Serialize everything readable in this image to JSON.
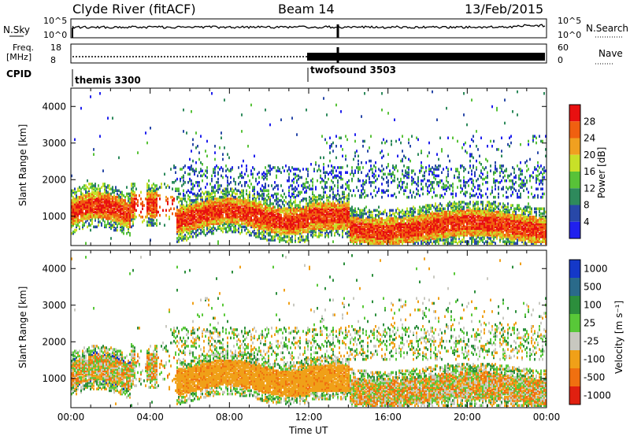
{
  "header": {
    "station": "Clyde River (fitACF)",
    "beam": "Beam 14",
    "date": "13/Feb/2015"
  },
  "top_panels": {
    "nsky_label": "N.Sky",
    "nsky_ticks": [
      "10^5",
      "10^0"
    ],
    "nsearch_label": "N.Search",
    "nsearch_ticks": [
      "10^5",
      "10^0"
    ],
    "freq_label_1": "Freq.",
    "freq_label_2": "[MHz]",
    "freq_ticks": [
      "18",
      "8"
    ],
    "nave_label": "Nave",
    "nave_ticks": [
      "60",
      "0"
    ],
    "cpid_label": "CPID",
    "cpid_segments": [
      {
        "name": "themis 3300",
        "start_hour": 0
      },
      {
        "name": "twofsound 3503",
        "start_hour": 12
      }
    ]
  },
  "chart_data": [
    {
      "type": "heatmap",
      "panel": "power",
      "ylabel": "Slant Range [km]",
      "xlabel": "",
      "x_ticks": [],
      "y_ticks": [
        "1000",
        "2000",
        "3000",
        "4000"
      ],
      "yrange": [
        200,
        4500
      ],
      "xrange": [
        0,
        24
      ],
      "colorbar_label": "Power [dB]",
      "colorbar_ticks": [
        "4",
        "8",
        "12",
        "16",
        "20",
        "24",
        "28"
      ],
      "colors": [
        "#2020ee",
        "#2848a8",
        "#2e8a5c",
        "#58c238",
        "#c8e028",
        "#f0a020",
        "#f06010",
        "#e81010"
      ],
      "description_of_data": "Strong backscatter band 500-1600 km slant range throughout the day, with highest power near 600-1200 km"
    },
    {
      "type": "heatmap",
      "panel": "velocity",
      "ylabel": "Slant Range [km]",
      "xlabel": "Time UT",
      "x_ticks": [
        "00:00",
        "04:00",
        "08:00",
        "12:00",
        "16:00",
        "20:00",
        "00:00"
      ],
      "y_ticks": [
        "1000",
        "2000",
        "3000",
        "4000"
      ],
      "yrange": [
        200,
        4500
      ],
      "xrange": [
        0,
        24
      ],
      "colorbar_label": "Velocity [m s⁻¹]",
      "colorbar_ticks": [
        "1000",
        "500",
        "100",
        "25",
        "-25",
        "-100",
        "-500",
        "-1000"
      ],
      "colors": [
        "#1438c8",
        "#2a6a8a",
        "#2c8e3c",
        "#58c838",
        "#c8c8c0",
        "#f0a018",
        "#f07010",
        "#e02010"
      ]
    }
  ]
}
